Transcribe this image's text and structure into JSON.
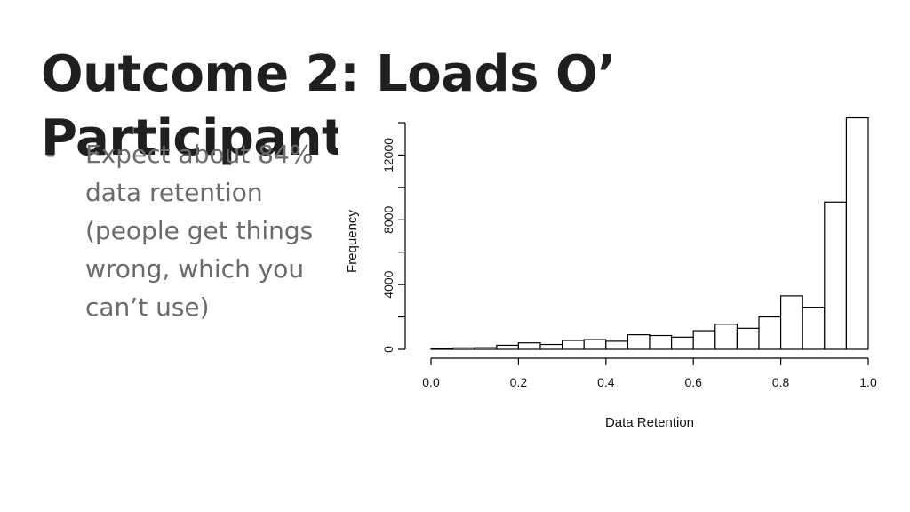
{
  "slide": {
    "title_line1": "Outcome 2: Loads O’",
    "title_line2": "Participants",
    "bullet_marker": "-",
    "bullet_text": "Expect about 84% data retention (people get things wrong, which you can’t use)"
  },
  "chart_data": {
    "type": "bar",
    "title": "",
    "xlabel": "Data Retention",
    "ylabel": "Frequency",
    "xlim": [
      0,
      1
    ],
    "ylim": [
      0,
      14000
    ],
    "x_ticks": [
      0.0,
      0.2,
      0.4,
      0.6,
      0.8,
      1.0
    ],
    "x_tick_labels": [
      "0.0",
      "0.2",
      "0.4",
      "0.6",
      "0.8",
      "1.0"
    ],
    "y_ticks": [
      0,
      4000,
      8000,
      12000
    ],
    "y_tick_labels": [
      "0",
      "4000",
      "8000",
      "12000"
    ],
    "bin_width": 0.05,
    "bins": [
      {
        "start": 0.0,
        "end": 0.05,
        "value": 40
      },
      {
        "start": 0.05,
        "end": 0.1,
        "value": 90
      },
      {
        "start": 0.1,
        "end": 0.15,
        "value": 100
      },
      {
        "start": 0.15,
        "end": 0.2,
        "value": 250
      },
      {
        "start": 0.2,
        "end": 0.25,
        "value": 400
      },
      {
        "start": 0.25,
        "end": 0.3,
        "value": 300
      },
      {
        "start": 0.3,
        "end": 0.35,
        "value": 550
      },
      {
        "start": 0.35,
        "end": 0.4,
        "value": 600
      },
      {
        "start": 0.4,
        "end": 0.45,
        "value": 500
      },
      {
        "start": 0.45,
        "end": 0.5,
        "value": 900
      },
      {
        "start": 0.5,
        "end": 0.55,
        "value": 850
      },
      {
        "start": 0.55,
        "end": 0.6,
        "value": 750
      },
      {
        "start": 0.6,
        "end": 0.65,
        "value": 1150
      },
      {
        "start": 0.65,
        "end": 0.7,
        "value": 1550
      },
      {
        "start": 0.7,
        "end": 0.75,
        "value": 1300
      },
      {
        "start": 0.75,
        "end": 0.8,
        "value": 2000
      },
      {
        "start": 0.8,
        "end": 0.85,
        "value": 3300
      },
      {
        "start": 0.85,
        "end": 0.9,
        "value": 2600
      },
      {
        "start": 0.9,
        "end": 0.95,
        "value": 9100
      },
      {
        "start": 0.95,
        "end": 1.0,
        "value": 14300
      }
    ],
    "grid": false,
    "bar_fill": "#ffffff",
    "bar_stroke": "#000000"
  }
}
